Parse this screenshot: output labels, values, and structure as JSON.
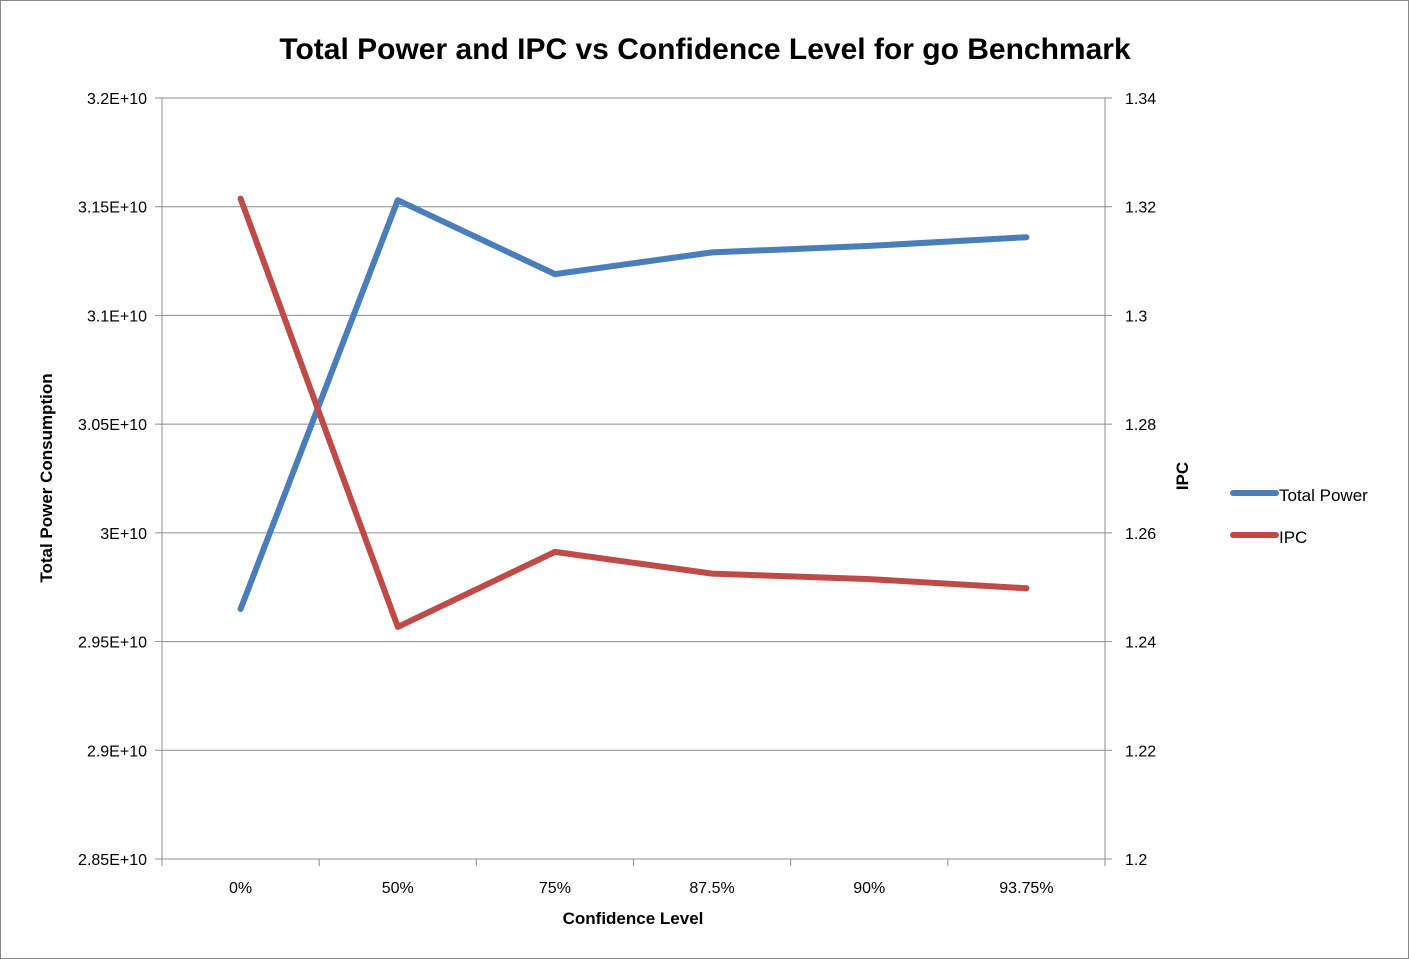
{
  "chart_data": {
    "type": "line",
    "title": "Total Power and IPC vs Confidence Level for go Benchmark",
    "xlabel": "Confidence Level",
    "ylabel": "Total Power Consumption",
    "y2label": "IPC",
    "categories": [
      "0%",
      "50%",
      "75%",
      "87.5%",
      "90%",
      "93.75%"
    ],
    "y_axis": {
      "min": 28500000000,
      "max": 32000000000,
      "ticks": [
        28500000000,
        29000000000,
        29500000000,
        30000000000,
        30500000000,
        31000000000,
        31500000000,
        32000000000
      ],
      "tick_labels": [
        "2.85E+10",
        "2.9E+10",
        "2.95E+10",
        "3E+10",
        "3.05E+10",
        "3.1E+10",
        "3.15E+10",
        "3.2E+10"
      ]
    },
    "y2_axis": {
      "min": 1.2,
      "max": 1.34,
      "ticks": [
        1.2,
        1.22,
        1.24,
        1.26,
        1.28,
        1.3,
        1.32,
        1.34
      ],
      "tick_labels": [
        "1.2",
        "1.22",
        "1.24",
        "1.26",
        "1.28",
        "1.3",
        "1.32",
        "1.34"
      ]
    },
    "grid": true,
    "legend_position": "right",
    "series": [
      {
        "name": "Total Power",
        "axis": "left",
        "color": "#4a7ebb",
        "values": [
          29650000000,
          31530000000,
          31190000000,
          31290000000,
          31320000000,
          31360000000
        ]
      },
      {
        "name": "IPC",
        "axis": "right",
        "color": "#be4b48",
        "values": [
          1.3215,
          1.2427,
          1.2565,
          1.2525,
          1.2515,
          1.2498
        ]
      }
    ]
  }
}
